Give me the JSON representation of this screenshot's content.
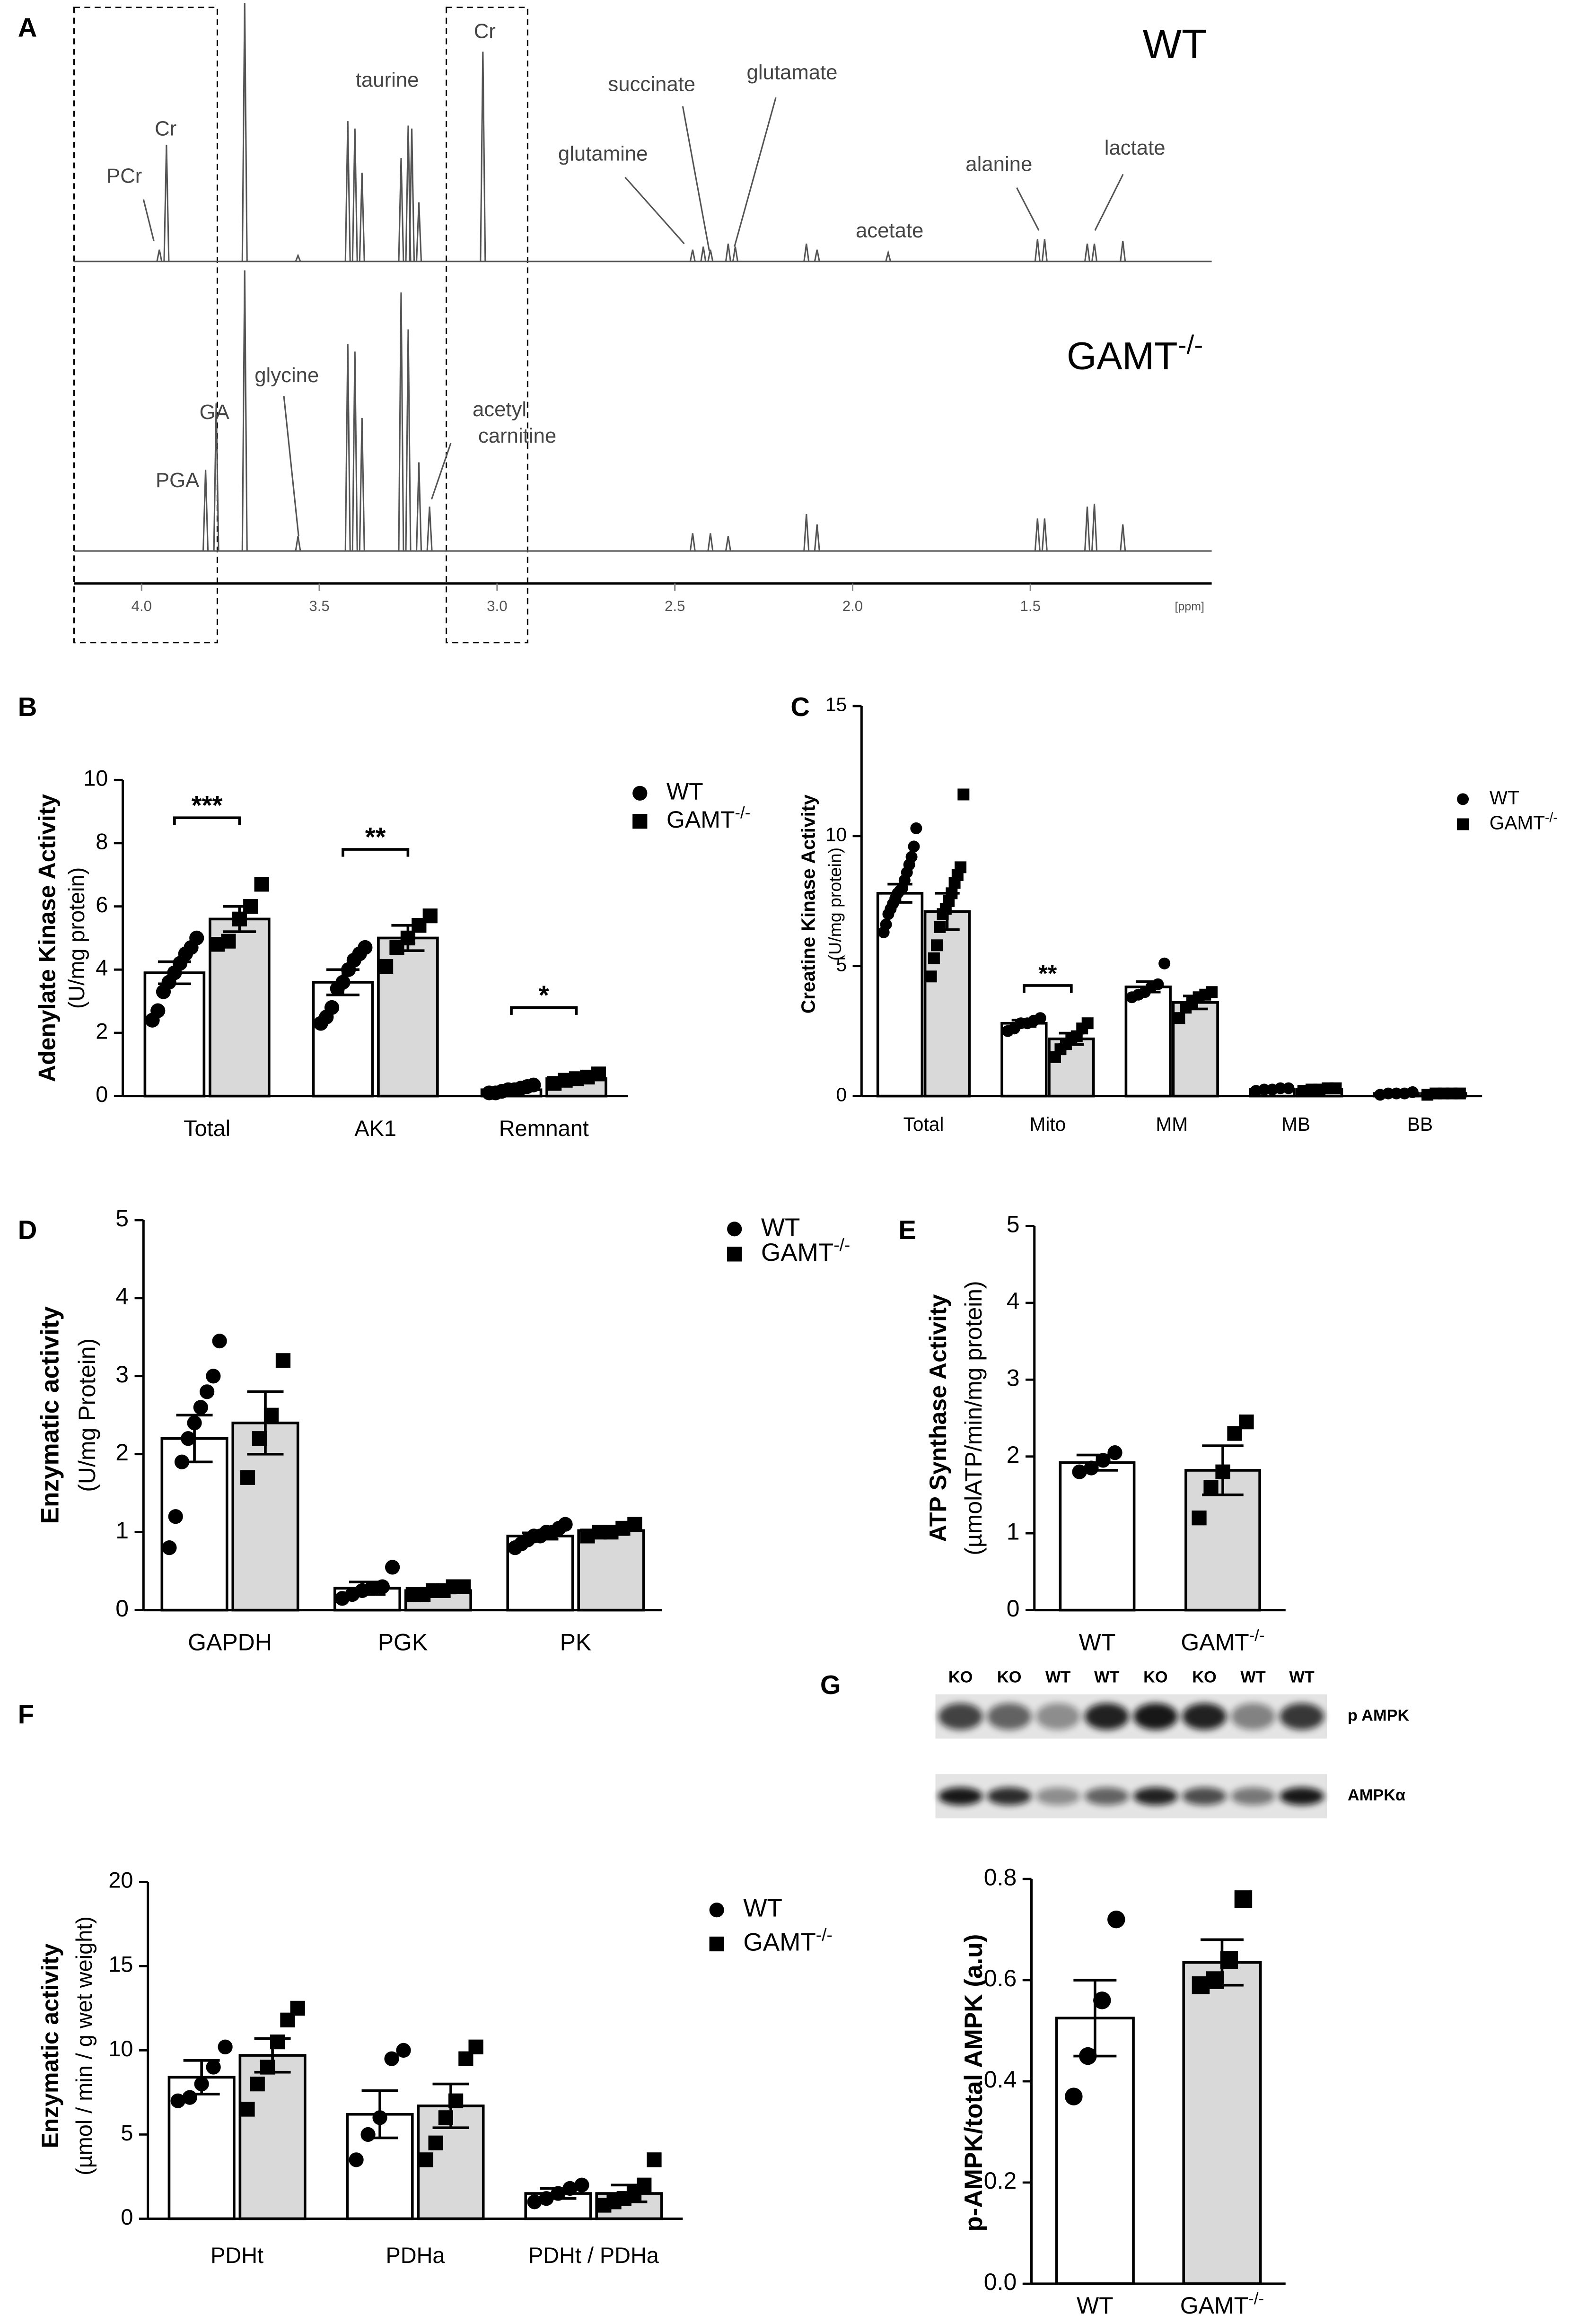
{
  "chart_data": [
    {
      "panel": "A",
      "type": "spectrum",
      "xlim": [
        4.19,
        0.99
      ],
      "xticks": [
        {
          "value": 4,
          "label": "4.0"
        },
        {
          "value": 3.5,
          "label": "3.5"
        },
        {
          "value": 3,
          "label": "3.0"
        },
        {
          "value": 2.5,
          "label": "2.5"
        },
        {
          "value": 2,
          "label": "2.0"
        },
        {
          "value": 1.5,
          "label": "1.5"
        }
      ],
      "xlabel": "[ppm]",
      "series": [
        {
          "name": "WT",
          "color": "#555555",
          "x": [
            3.95,
            3.93,
            3.71,
            3.56,
            3.42,
            3.4,
            3.38,
            3.27,
            3.25,
            3.24,
            3.22,
            3.04,
            2.45,
            2.42,
            2.4,
            2.35,
            2.33,
            2.13,
            2.1,
            1.9,
            1.48,
            1.46,
            1.34,
            1.32,
            1.24
          ],
          "values": [
            8,
            79,
            175,
            4,
            95,
            90,
            60,
            70,
            92,
            90,
            40,
            142,
            8,
            10,
            8,
            12,
            10,
            12,
            8,
            6,
            15,
            15,
            12,
            12,
            14
          ]
        },
        {
          "name": "GAMT-/-",
          "color": "#555555",
          "x": [
            3.82,
            3.79,
            3.71,
            3.56,
            3.42,
            3.4,
            3.38,
            3.27,
            3.25,
            3.22,
            3.19,
            2.45,
            2.4,
            2.35,
            2.13,
            2.1,
            1.48,
            1.46,
            1.34,
            1.32,
            1.24
          ],
          "values": [
            55,
            100,
            190,
            10,
            140,
            135,
            90,
            175,
            150,
            60,
            30,
            12,
            12,
            10,
            25,
            18,
            22,
            22,
            30,
            32,
            18
          ]
        }
      ],
      "annotations": [
        "PCr",
        "Cr",
        "taurine",
        "Cr",
        "succinate",
        "glutamate",
        "glutamine",
        "acetate",
        "alanine",
        "lactate",
        "GA",
        "PGA",
        "glycine",
        "acetyl",
        "carnitine"
      ]
    },
    {
      "panel": "B",
      "type": "bar",
      "ylabel": [
        "Adenylate Kinase Activity",
        "(U/mg protein)"
      ],
      "categories": [
        "Total",
        "AK1",
        "Remnant"
      ],
      "ylim": [
        0,
        10
      ],
      "yticks": [
        0,
        2,
        4,
        6,
        8,
        10
      ],
      "significance": [
        "***",
        "**",
        "*"
      ],
      "series": [
        {
          "name": "WT",
          "color": "#ffffff",
          "marker": "circle",
          "values": [
            3.9,
            3.6,
            0.2
          ],
          "errors": [
            0.35,
            0.4,
            0.04
          ],
          "points": [
            [
              2.4,
              2.7,
              3.3,
              3.6,
              3.9,
              4.2,
              4.5,
              4.7,
              5.0
            ],
            [
              2.3,
              2.5,
              2.8,
              3.4,
              3.6,
              4.0,
              4.3,
              4.5,
              4.7
            ],
            [
              0.1,
              0.1,
              0.15,
              0.2,
              0.2,
              0.25,
              0.3,
              0.35
            ]
          ]
        },
        {
          "name": "GAMT-/-",
          "color": "#d9d9d9",
          "marker": "square",
          "values": [
            5.6,
            5.0,
            0.55
          ],
          "errors": [
            0.4,
            0.4,
            0.07
          ],
          "points": [
            [
              4.8,
              4.9,
              5.6,
              6.0,
              6.7
            ],
            [
              4.1,
              4.7,
              5.0,
              5.4,
              5.7
            ],
            [
              0.4,
              0.5,
              0.55,
              0.6,
              0.7
            ]
          ]
        }
      ]
    },
    {
      "panel": "C",
      "type": "bar",
      "ylabel": [
        "Creatine Kinase Activity",
        "(U/mg protein)"
      ],
      "categories": [
        "Total",
        "Mito",
        "MM",
        "MB",
        "BB"
      ],
      "ylim": [
        0,
        15
      ],
      "yticks": [
        0,
        5,
        10,
        15
      ],
      "significance": [
        null,
        "**",
        null,
        null,
        null
      ],
      "series": [
        {
          "name": "WT",
          "color": "#ffffff",
          "marker": "circle",
          "values": [
            7.8,
            2.8,
            4.2,
            0.25,
            0.1
          ],
          "errors": [
            0.35,
            0.12,
            0.2,
            0.03,
            0.02
          ],
          "points": [
            [
              6.3,
              6.6,
              7.0,
              7.2,
              7.4,
              7.6,
              7.8,
              7.9,
              8.0,
              8.3,
              8.6,
              8.9,
              9.2,
              9.6,
              10.3
            ],
            [
              2.5,
              2.6,
              2.8,
              2.8,
              2.9,
              3.0
            ],
            [
              3.8,
              3.9,
              4.0,
              4.2,
              4.3,
              5.1
            ],
            [
              0.2,
              0.25,
              0.25,
              0.3,
              0.3
            ],
            [
              0.05,
              0.1,
              0.1,
              0.1,
              0.15
            ]
          ]
        },
        {
          "name": "GAMT-/-",
          "color": "#d9d9d9",
          "marker": "square",
          "values": [
            7.1,
            2.2,
            3.6,
            0.25,
            0.1
          ],
          "errors": [
            0.7,
            0.22,
            0.25,
            0.03,
            0.02
          ],
          "points": [
            [
              4.6,
              5.3,
              5.8,
              6.5,
              7.0,
              7.2,
              7.5,
              7.8,
              8.2,
              8.5,
              8.8,
              11.6
            ],
            [
              1.5,
              1.8,
              2.0,
              2.2,
              2.3,
              2.6,
              2.8
            ],
            [
              3.0,
              3.4,
              3.6,
              3.8,
              3.9,
              4.0
            ],
            [
              0.2,
              0.25,
              0.25,
              0.3,
              0.3
            ],
            [
              0.05,
              0.1,
              0.1,
              0.1,
              0.1
            ]
          ]
        }
      ]
    },
    {
      "panel": "D",
      "type": "bar",
      "ylabel": [
        "Enzymatic activity",
        "(U/mg Protein)"
      ],
      "categories": [
        "GAPDH",
        "PGK",
        "PK"
      ],
      "ylim": [
        0,
        5
      ],
      "yticks": [
        0,
        1,
        2,
        3,
        4,
        5
      ],
      "series": [
        {
          "name": "WT",
          "color": "#ffffff",
          "marker": "circle",
          "values": [
            2.2,
            0.28,
            0.95
          ],
          "errors": [
            0.3,
            0.08,
            0.04
          ],
          "points": [
            [
              0.8,
              1.2,
              1.9,
              2.2,
              2.4,
              2.6,
              2.8,
              3.0,
              3.45
            ],
            [
              0.15,
              0.2,
              0.25,
              0.28,
              0.3,
              0.55
            ],
            [
              0.8,
              0.85,
              0.9,
              0.95,
              0.95,
              1.0,
              1.0,
              1.05,
              1.1
            ]
          ]
        },
        {
          "name": "GAMT-/-",
          "color": "#d9d9d9",
          "marker": "square",
          "values": [
            2.4,
            0.25,
            1.02
          ],
          "errors": [
            0.4,
            0.03,
            0.05
          ],
          "points": [
            [
              1.7,
              2.2,
              2.5,
              3.2
            ],
            [
              0.2,
              0.2,
              0.25,
              0.25,
              0.3,
              0.3
            ],
            [
              0.95,
              1.0,
              1.0,
              1.05,
              1.1
            ]
          ]
        }
      ]
    },
    {
      "panel": "E",
      "type": "bar",
      "ylabel": [
        "ATP Synthase Activity",
        "(µmolATP/min/mg protein)"
      ],
      "categories": [
        "WT",
        "GAMT-/-"
      ],
      "ylim": [
        0,
        5
      ],
      "yticks": [
        0,
        1,
        2,
        3,
        4,
        5
      ],
      "values": [
        1.92,
        1.82
      ],
      "errors": [
        0.1,
        0.32
      ],
      "colors": [
        "#ffffff",
        "#d9d9d9"
      ],
      "markers": [
        "circle",
        "square"
      ],
      "points": [
        [
          1.8,
          1.85,
          1.95,
          2.05
        ],
        [
          1.2,
          1.6,
          1.8,
          2.3,
          2.45
        ]
      ]
    },
    {
      "panel": "F",
      "type": "bar",
      "ylabel": [
        "Enzymatic activity",
        "(µmol / min / g wet weight)"
      ],
      "categories": [
        "PDHt",
        "PDHa",
        "PDHt / PDHa"
      ],
      "ylim": [
        0,
        20
      ],
      "yticks": [
        0,
        5,
        10,
        15,
        20
      ],
      "series": [
        {
          "name": "WT",
          "color": "#ffffff",
          "marker": "circle",
          "values": [
            8.4,
            6.2,
            1.5
          ],
          "errors": [
            1.0,
            1.4,
            0.3
          ],
          "points": [
            [
              7.0,
              7.2,
              8.0,
              9.0,
              10.2
            ],
            [
              3.5,
              5.0,
              6.0,
              9.5,
              10.0
            ],
            [
              1.0,
              1.2,
              1.5,
              1.8,
              2.0
            ]
          ]
        },
        {
          "name": "GAMT-/-",
          "color": "#d9d9d9",
          "marker": "square",
          "values": [
            9.7,
            6.7,
            1.5
          ],
          "errors": [
            1.0,
            1.3,
            0.5
          ],
          "points": [
            [
              6.5,
              8.0,
              9.0,
              10.5,
              11.8,
              12.5
            ],
            [
              3.5,
              4.5,
              6.0,
              7.0,
              9.5,
              10.2
            ],
            [
              0.8,
              1.0,
              1.2,
              1.5,
              2.0,
              3.5
            ]
          ]
        }
      ]
    },
    {
      "panel": "G",
      "type": "bar",
      "ylabel": [
        "p-AMPK/total AMPK (a.u)"
      ],
      "categories": [
        "WT",
        "GAMT-/-"
      ],
      "ylim": [
        0,
        0.8
      ],
      "yticks": [
        {
          "value": 0,
          "label": "0.0"
        },
        {
          "value": 0.2,
          "label": "0.2"
        },
        {
          "value": 0.4,
          "label": "0.4"
        },
        {
          "value": 0.6,
          "label": "0.6"
        },
        {
          "value": 0.8,
          "label": "0.8"
        }
      ],
      "values": [
        0.525,
        0.635
      ],
      "errors": [
        0.075,
        0.045
      ],
      "colors": [
        "#ffffff",
        "#d9d9d9"
      ],
      "markers": [
        "circle",
        "square"
      ],
      "points": [
        [
          0.37,
          0.45,
          0.56,
          0.72
        ],
        [
          0.59,
          0.6,
          0.64,
          0.76
        ]
      ],
      "blot": {
        "lanes": [
          "KO",
          "KO",
          "WT",
          "WT",
          "KO",
          "KO",
          "WT",
          "WT"
        ],
        "bands": [
          "p AMPK",
          "AMPKα"
        ]
      }
    }
  ]
}
